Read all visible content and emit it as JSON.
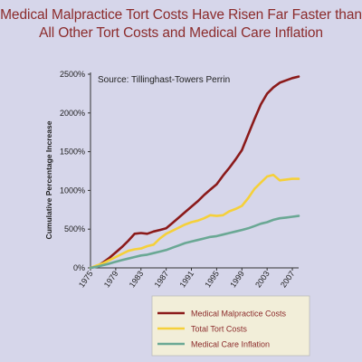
{
  "title": {
    "line1": "Medical Malpractice Tort Costs Have Risen Far Faster than",
    "line2": "All Other Tort Costs and Medical Care Inflation"
  },
  "source": "Source: Tillinghast-Towers Perrin",
  "colors": {
    "background": "#d6d6ea",
    "title": "#8b2b2b",
    "malpractice": "#8b1a1a",
    "total_tort": "#f5d03a",
    "medical_inflation": "#6aa894",
    "legend_box": "#f2eed9"
  },
  "chart_data": {
    "type": "line",
    "title": "Medical Malpractice Tort Costs Have Risen Far Faster than All Other Tort Costs and Medical Care Inflation",
    "xlabel": "",
    "ylabel": "Cumulative Percentage Increase",
    "xlim": [
      1975,
      2008
    ],
    "ylim": [
      0,
      2500
    ],
    "x_ticks": [
      1975,
      1979,
      1983,
      1987,
      1991,
      1995,
      1999,
      2003,
      2007
    ],
    "y_ticks": [
      0,
      500,
      1000,
      1500,
      2000,
      2500
    ],
    "y_tick_labels": [
      "0%",
      "500%",
      "1000%",
      "1500%",
      "2000%",
      "2500%"
    ],
    "grid": false,
    "legend_position": "bottom-right",
    "x": [
      1975,
      1976,
      1977,
      1978,
      1979,
      1980,
      1981,
      1982,
      1983,
      1984,
      1985,
      1986,
      1987,
      1988,
      1989,
      1990,
      1991,
      1992,
      1993,
      1994,
      1995,
      1996,
      1997,
      1998,
      1999,
      2000,
      2001,
      2002,
      2003,
      2004,
      2005,
      2006,
      2007,
      2008
    ],
    "series": [
      {
        "name": "Medical Malpractice Costs",
        "color": "#8b1a1a",
        "values": [
          0,
          20,
          70,
          130,
          200,
          270,
          350,
          440,
          450,
          440,
          470,
          490,
          510,
          580,
          650,
          720,
          790,
          860,
          940,
          1010,
          1080,
          1190,
          1290,
          1400,
          1520,
          1720,
          1920,
          2110,
          2250,
          2330,
          2390,
          2420,
          2450,
          2470
        ]
      },
      {
        "name": "Total Tort Costs",
        "color": "#f5d03a",
        "values": [
          0,
          30,
          60,
          100,
          140,
          180,
          220,
          240,
          250,
          280,
          300,
          380,
          440,
          480,
          520,
          560,
          590,
          610,
          640,
          680,
          670,
          680,
          730,
          760,
          800,
          900,
          1020,
          1100,
          1180,
          1200,
          1130,
          1140,
          1150,
          1150
        ]
      },
      {
        "name": "Medical Care Inflation",
        "color": "#6aa894",
        "values": [
          0,
          15,
          35,
          55,
          80,
          100,
          120,
          140,
          160,
          170,
          190,
          210,
          230,
          260,
          290,
          320,
          340,
          360,
          380,
          400,
          410,
          430,
          450,
          470,
          490,
          510,
          540,
          570,
          590,
          620,
          640,
          650,
          660,
          670
        ]
      }
    ]
  }
}
